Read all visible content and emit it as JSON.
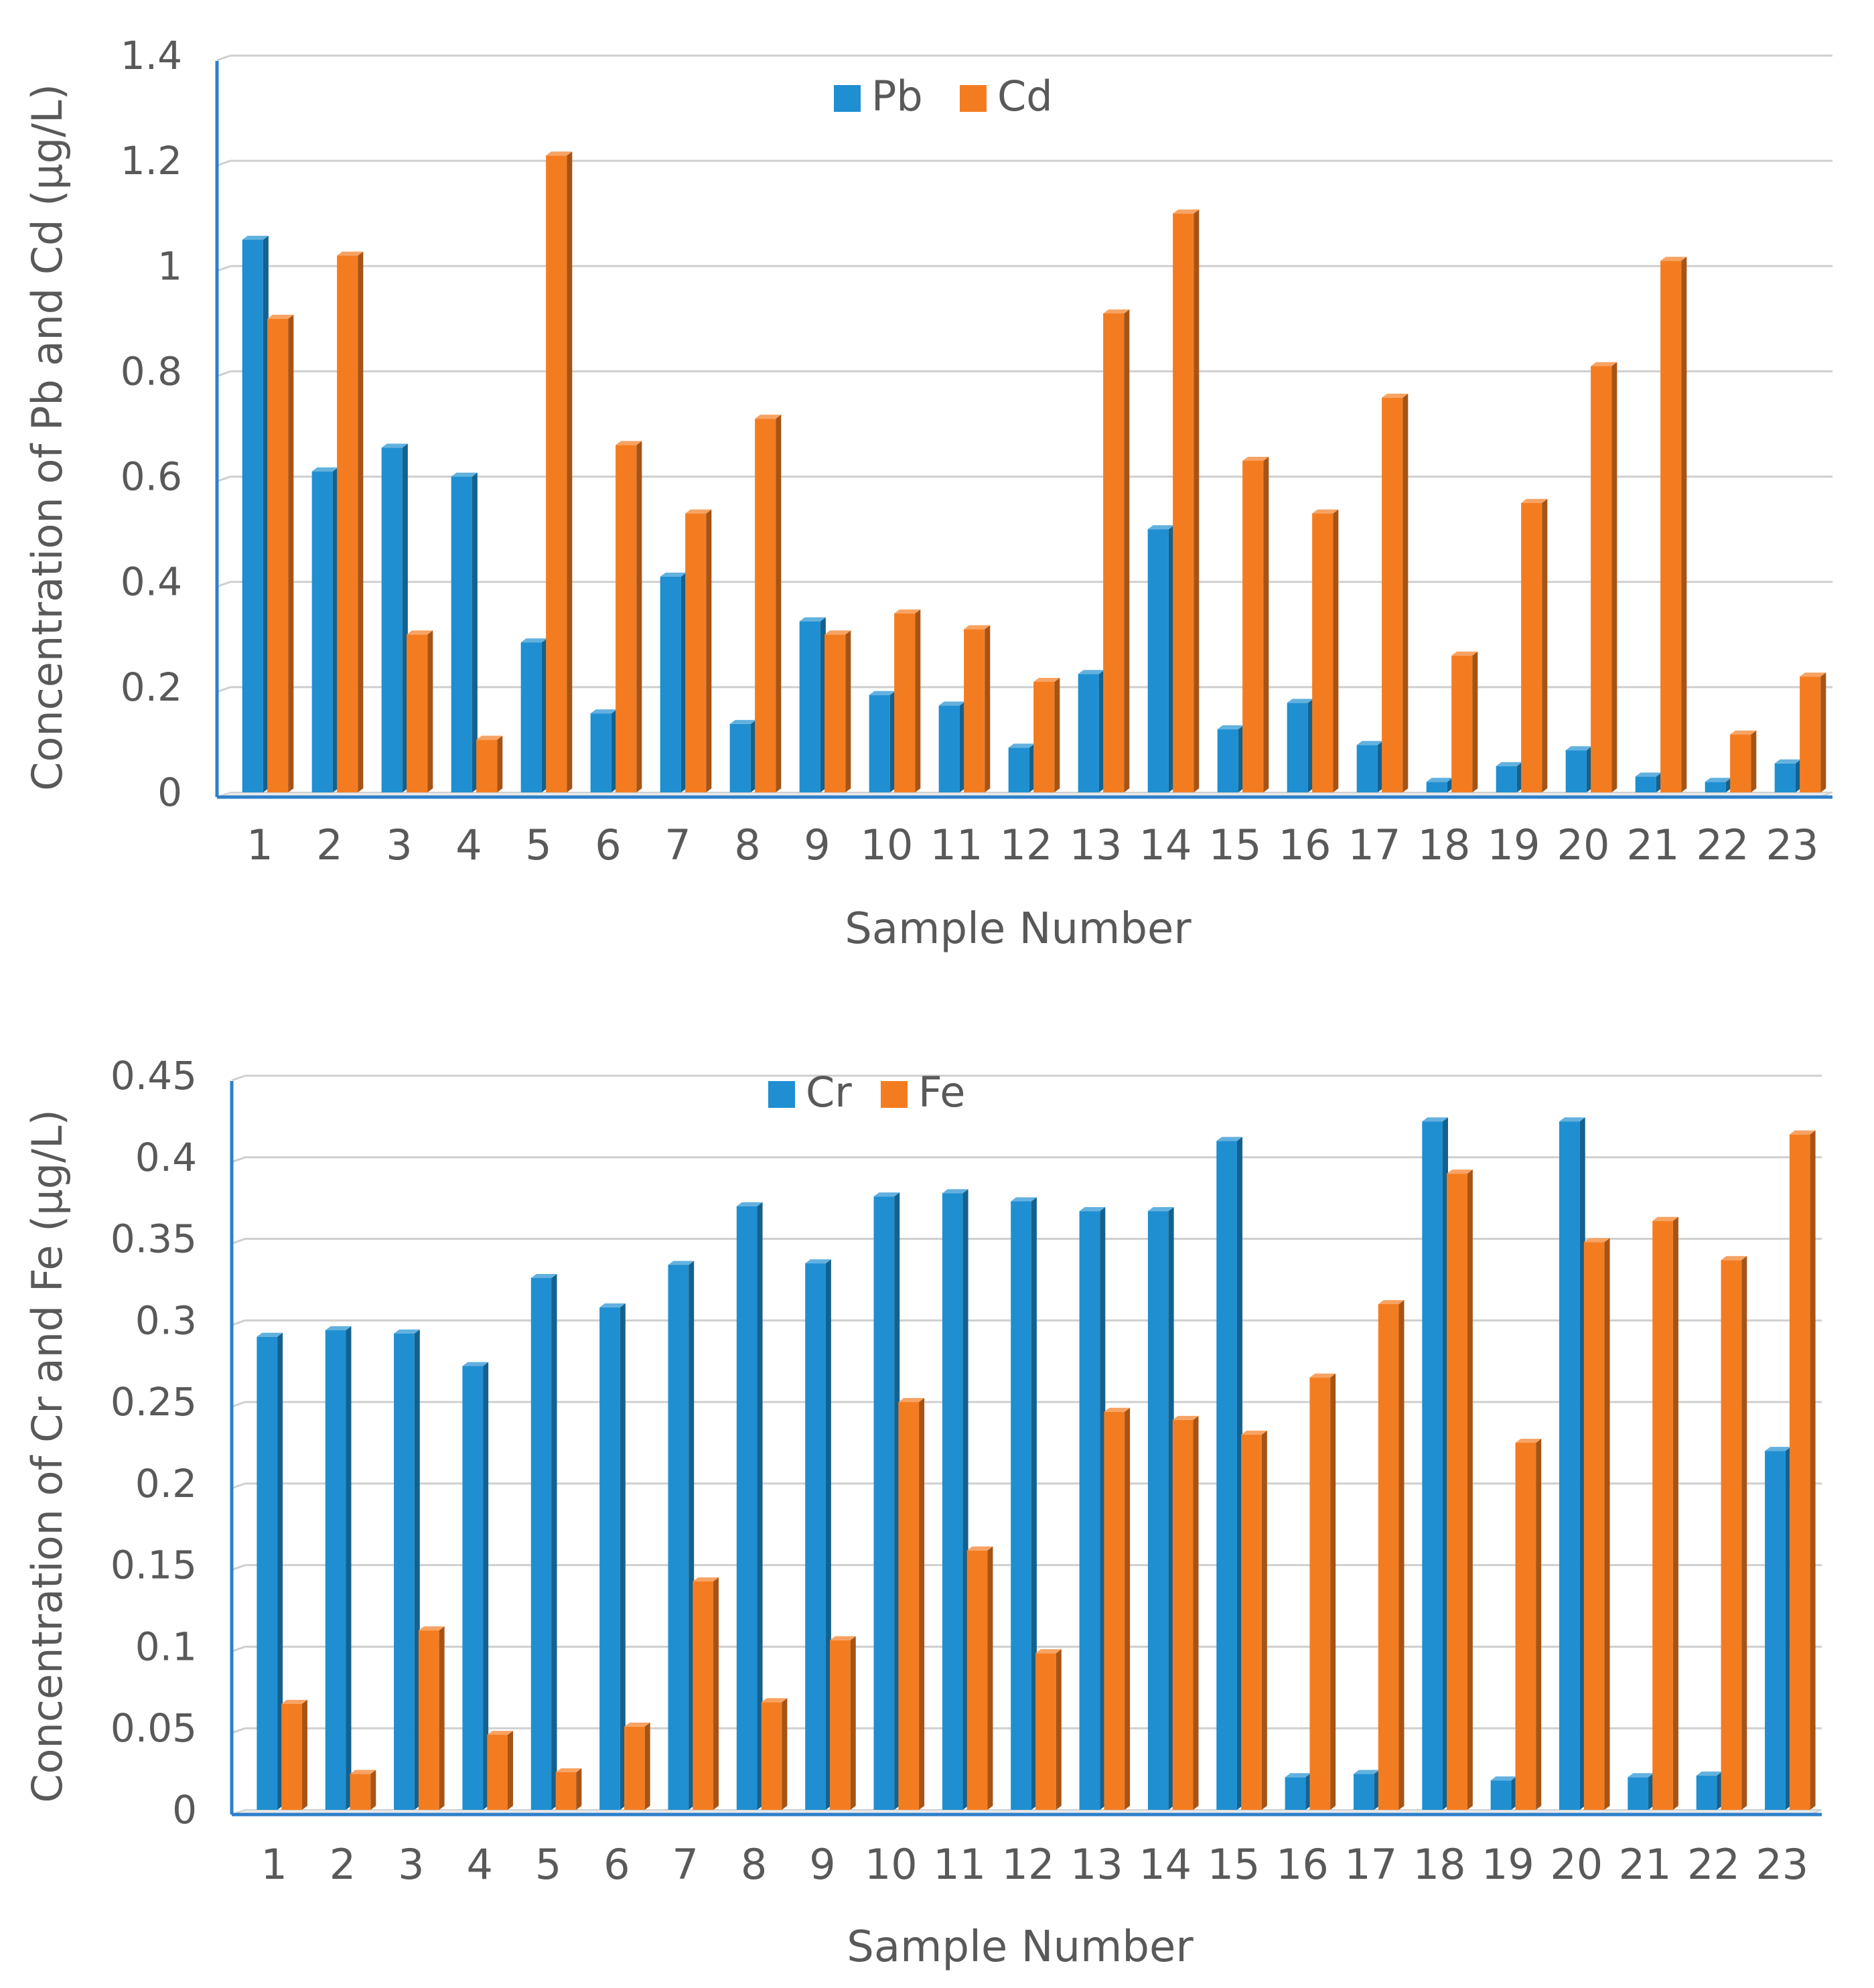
{
  "chart_data": [
    {
      "type": "bar",
      "title": "",
      "xlabel": "Sample Number",
      "ylabel": "Concentration of Pb and Cd (μg/L)",
      "categories": [
        "1",
        "2",
        "3",
        "4",
        "5",
        "6",
        "7",
        "8",
        "9",
        "10",
        "11",
        "12",
        "13",
        "14",
        "15",
        "16",
        "17",
        "18",
        "19",
        "20",
        "21",
        "22",
        "23"
      ],
      "ylim": [
        0,
        1.4
      ],
      "yticks": [
        "0",
        "0.2",
        "0.4",
        "0.6",
        "0.8",
        "1",
        "1.2",
        "1.4"
      ],
      "grid": true,
      "legend_position": "top-center",
      "series": [
        {
          "name": "Pb",
          "color": "#1f8fd1",
          "values": [
            1.05,
            0.61,
            0.655,
            0.6,
            0.285,
            0.15,
            0.41,
            0.13,
            0.325,
            0.185,
            0.165,
            0.085,
            0.225,
            0.5,
            0.12,
            0.17,
            0.09,
            0.02,
            0.05,
            0.08,
            0.03,
            0.02,
            0.055
          ]
        },
        {
          "name": "Cd",
          "color": "#f47c20",
          "values": [
            0.9,
            1.02,
            0.3,
            0.1,
            1.21,
            0.66,
            0.53,
            0.71,
            0.3,
            0.34,
            0.31,
            0.21,
            0.91,
            1.1,
            0.63,
            0.53,
            0.75,
            0.26,
            0.55,
            0.81,
            1.01,
            0.11,
            0.22
          ]
        }
      ]
    },
    {
      "type": "bar",
      "title": "",
      "xlabel": "Sample Number",
      "ylabel": "Concentration of Cr and Fe (μg/L)",
      "categories": [
        "1",
        "2",
        "3",
        "4",
        "5",
        "6",
        "7",
        "8",
        "9",
        "10",
        "11",
        "12",
        "13",
        "14",
        "15",
        "16",
        "17",
        "18",
        "19",
        "20",
        "21",
        "22",
        "23"
      ],
      "ylim": [
        0,
        0.45
      ],
      "yticks": [
        "0",
        "0.05",
        "0.1",
        "0.15",
        "0.2",
        "0.25",
        "0.3",
        "0.35",
        "0.4",
        "0.45"
      ],
      "grid": true,
      "legend_position": "top-center",
      "series": [
        {
          "name": "Cr",
          "color": "#1f8fd1",
          "values": [
            0.29,
            0.294,
            0.292,
            0.272,
            0.326,
            0.308,
            0.334,
            0.37,
            0.335,
            0.376,
            0.378,
            0.373,
            0.367,
            0.367,
            0.41,
            0.02,
            0.022,
            0.422,
            0.018,
            0.422,
            0.02,
            0.021,
            0.22
          ]
        },
        {
          "name": "Fe",
          "color": "#f47c20",
          "values": [
            0.065,
            0.022,
            0.11,
            0.046,
            0.023,
            0.051,
            0.14,
            0.066,
            0.104,
            0.25,
            0.159,
            0.096,
            0.244,
            0.239,
            0.23,
            0.265,
            0.31,
            0.39,
            0.225,
            0.348,
            0.361,
            0.337,
            0.414
          ]
        }
      ]
    }
  ]
}
